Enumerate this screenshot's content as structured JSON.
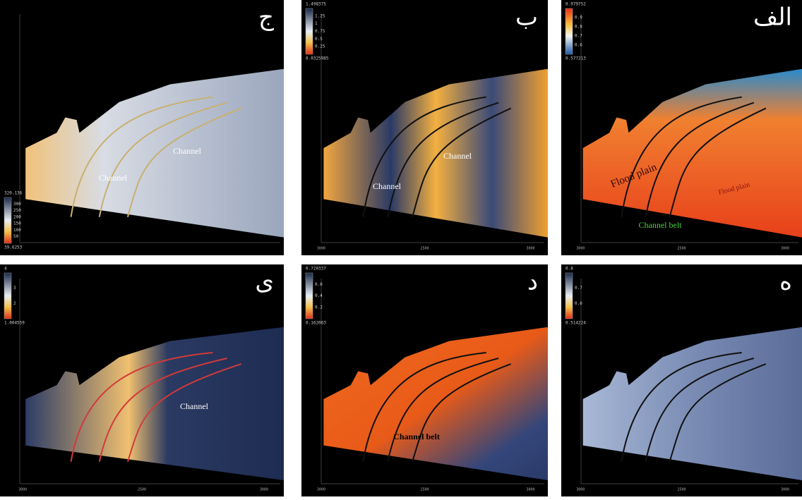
{
  "panels": [
    {
      "letter": "ج",
      "colorbar": [
        "320.136",
        "300",
        "250",
        "200",
        "150",
        "100",
        "50",
        "39.6253"
      ],
      "annotations": [
        "Channel",
        "Channel"
      ],
      "axis_labels": []
    },
    {
      "letter": "ب",
      "colorbar": [
        "1.498375",
        "1.25",
        "1",
        "0.75",
        "0.5",
        "0.25",
        "0.0325985"
      ],
      "annotations": [
        "Channel",
        "Channel"
      ],
      "axis_labels": [
        "3000",
        "2500",
        "3000"
      ]
    },
    {
      "letter": "الف",
      "colorbar": [
        "0.979752",
        "0.9",
        "0.8",
        "0.7",
        "0.6",
        "0.577213"
      ],
      "annotations": [
        "Flood plain",
        "Flood plain",
        "Channel belt"
      ],
      "axis_labels": [
        "3000",
        "2500",
        "3000"
      ]
    },
    {
      "letter": "ی",
      "colorbar": [
        "4",
        "3",
        "2",
        "1.004559"
      ],
      "annotations": [
        "Channel"
      ],
      "axis_labels": [
        "3000",
        "2500",
        "3000"
      ]
    },
    {
      "letter": "د",
      "colorbar": [
        "0.720337",
        "0.6",
        "0.4",
        "0.2",
        "0.162063"
      ],
      "annotations": [
        "Channel belt"
      ],
      "axis_labels": [
        "3000",
        "2500",
        "3000"
      ]
    },
    {
      "letter": "ه",
      "colorbar": [
        "0.8",
        "0.7",
        "0.6",
        "0.514224"
      ],
      "annotations": [],
      "axis_labels": [
        "3000",
        "2500",
        "3000"
      ]
    }
  ]
}
